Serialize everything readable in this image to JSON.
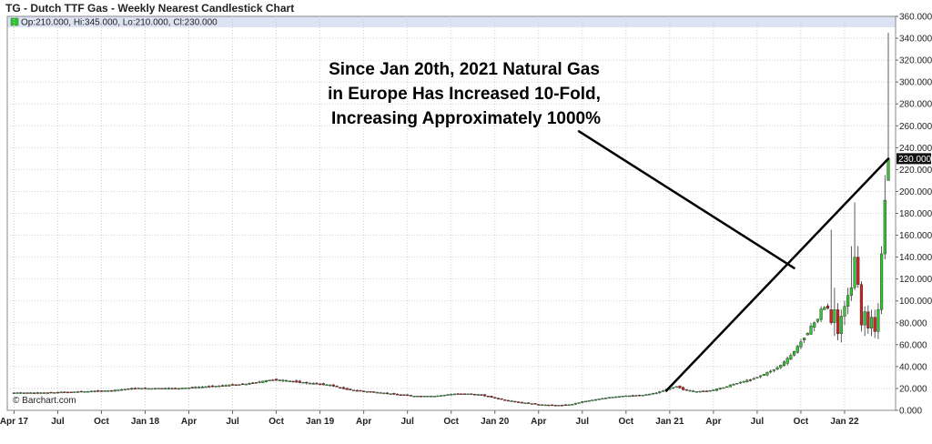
{
  "chart_data": {
    "type": "candlestick",
    "title": "TG - Dutch TTF Gas - Weekly Nearest Candlestick Chart",
    "legend": "Op:210.000, Hi:345.000, Lo:210.000, Cl:230.000",
    "last_value_label": "230.000",
    "credit": "© Barchart.com",
    "ylim": [
      0,
      360
    ],
    "y_ticks": [
      "0.000",
      "20.000",
      "40.000",
      "60.000",
      "80.000",
      "100.000",
      "120.000",
      "140.000",
      "160.000",
      "180.000",
      "200.000",
      "220.000",
      "240.000",
      "260.000",
      "280.000",
      "300.000",
      "320.000",
      "340.000",
      "360.000"
    ],
    "x_ticks": [
      {
        "label": "Apr 17",
        "week": 0
      },
      {
        "label": "Jul",
        "week": 13
      },
      {
        "label": "Oct",
        "week": 26
      },
      {
        "label": "Jan 18",
        "week": 39
      },
      {
        "label": "Apr",
        "week": 52
      },
      {
        "label": "Jul",
        "week": 65
      },
      {
        "label": "Oct",
        "week": 78
      },
      {
        "label": "Jan 19",
        "week": 91
      },
      {
        "label": "Apr",
        "week": 104
      },
      {
        "label": "Jul",
        "week": 117
      },
      {
        "label": "Oct",
        "week": 130
      },
      {
        "label": "Jan 20",
        "week": 143
      },
      {
        "label": "Apr",
        "week": 156
      },
      {
        "label": "Jul",
        "week": 169
      },
      {
        "label": "Oct",
        "week": 182
      },
      {
        "label": "Jan 21",
        "week": 195
      },
      {
        "label": "Apr",
        "week": 208
      },
      {
        "label": "Jul",
        "week": 221
      },
      {
        "label": "Oct",
        "week": 234
      },
      {
        "label": "Jan 22",
        "week": 247
      }
    ],
    "week_range": [
      -2,
      260
    ],
    "anchors": [
      [
        0,
        16
      ],
      [
        10,
        16
      ],
      [
        20,
        17
      ],
      [
        30,
        18
      ],
      [
        36,
        20
      ],
      [
        40,
        20
      ],
      [
        50,
        20
      ],
      [
        60,
        22
      ],
      [
        70,
        24
      ],
      [
        76,
        27
      ],
      [
        78,
        28
      ],
      [
        82,
        27
      ],
      [
        88,
        25
      ],
      [
        95,
        23
      ],
      [
        100,
        19
      ],
      [
        110,
        16
      ],
      [
        120,
        13
      ],
      [
        126,
        13
      ],
      [
        132,
        15
      ],
      [
        136,
        15
      ],
      [
        140,
        14
      ],
      [
        146,
        10
      ],
      [
        152,
        7
      ],
      [
        158,
        5
      ],
      [
        162,
        4.5
      ],
      [
        166,
        5
      ],
      [
        170,
        8
      ],
      [
        176,
        11
      ],
      [
        182,
        13
      ],
      [
        188,
        14
      ],
      [
        192,
        16
      ],
      [
        196,
        20
      ],
      [
        198,
        22
      ],
      [
        200,
        19
      ],
      [
        204,
        17
      ],
      [
        208,
        18
      ],
      [
        212,
        21
      ],
      [
        216,
        25
      ],
      [
        220,
        28
      ],
      [
        224,
        33
      ],
      [
        228,
        39
      ],
      [
        230,
        44
      ],
      [
        232,
        50
      ],
      [
        234,
        58
      ],
      [
        236,
        67
      ],
      [
        238,
        76
      ],
      [
        240,
        84
      ],
      [
        241,
        92
      ],
      [
        242,
        94
      ]
    ],
    "last_weeks": [
      {
        "w": 243,
        "o": 92,
        "h": 165,
        "l": 78,
        "c": 80
      },
      {
        "w": 244,
        "o": 80,
        "h": 112,
        "l": 68,
        "c": 92
      },
      {
        "w": 245,
        "o": 92,
        "h": 98,
        "l": 64,
        "c": 70
      },
      {
        "w": 246,
        "o": 70,
        "h": 92,
        "l": 62,
        "c": 86
      },
      {
        "w": 247,
        "o": 86,
        "h": 100,
        "l": 78,
        "c": 95
      },
      {
        "w": 248,
        "o": 95,
        "h": 112,
        "l": 88,
        "c": 105
      },
      {
        "w": 249,
        "o": 105,
        "h": 150,
        "l": 100,
        "c": 112
      },
      {
        "w": 250,
        "o": 112,
        "h": 190,
        "l": 110,
        "c": 140
      },
      {
        "w": 251,
        "o": 140,
        "h": 150,
        "l": 112,
        "c": 115
      },
      {
        "w": 252,
        "o": 115,
        "h": 118,
        "l": 72,
        "c": 78
      },
      {
        "w": 253,
        "o": 78,
        "h": 95,
        "l": 68,
        "c": 90
      },
      {
        "w": 254,
        "o": 90,
        "h": 96,
        "l": 70,
        "c": 75
      },
      {
        "w": 255,
        "o": 75,
        "h": 92,
        "l": 68,
        "c": 85
      },
      {
        "w": 256,
        "o": 85,
        "h": 92,
        "l": 66,
        "c": 72
      },
      {
        "w": 257,
        "o": 72,
        "h": 98,
        "l": 65,
        "c": 92
      },
      {
        "w": 258,
        "o": 92,
        "h": 150,
        "l": 88,
        "c": 143
      },
      {
        "w": 259,
        "o": 143,
        "h": 215,
        "l": 138,
        "c": 192
      },
      {
        "w": 260,
        "o": 210,
        "h": 345,
        "l": 210,
        "c": 230
      }
    ],
    "annotation": {
      "lines": [
        "Since Jan 20th, 2021 Natural Gas",
        "in Europe Has Increased 10-Fold,",
        "Increasing Approximately 1000%"
      ]
    },
    "trend_line": {
      "from": {
        "week": 194,
        "value": 18
      },
      "to": {
        "week": 260,
        "value": 230
      }
    },
    "pointer_line": {
      "from": {
        "week": 168,
        "value": 255
      },
      "to": {
        "week": 232,
        "value": 130
      }
    },
    "colors": {
      "up": "#35c135",
      "down": "#cc2222",
      "wick": "#333333",
      "grid": "#cfcfcf",
      "legend_bg": "#dde3f3",
      "tag_bg": "#111111"
    }
  }
}
